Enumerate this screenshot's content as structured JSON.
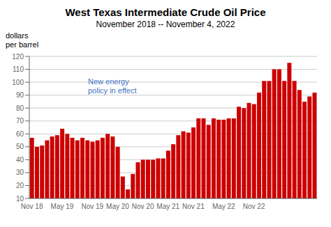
{
  "chart_data": {
    "type": "bar",
    "title": "West Texas Intermediate Crude Oil Price",
    "subtitle": "November 2018 -- November 4, 2022",
    "ylabel": "dollars\nper barrel",
    "annotations": [
      {
        "text": "New energy\npolicy in effect",
        "color": "#4472c4"
      }
    ],
    "categories": [
      "Nov 18",
      null,
      null,
      null,
      null,
      null,
      "May 19",
      null,
      null,
      null,
      null,
      null,
      "Nov 19",
      null,
      null,
      null,
      null,
      "May 20",
      null,
      null,
      null,
      null,
      "Nov 20",
      null,
      null,
      null,
      null,
      "May 21",
      null,
      null,
      null,
      null,
      "Nov 21",
      null,
      null,
      null,
      null,
      null,
      "May 22",
      null,
      null,
      null,
      null,
      null,
      "Nov 22",
      null,
      null,
      null,
      null,
      null,
      null,
      null,
      null,
      null,
      null,
      null,
      null
    ],
    "values": [
      57,
      50,
      51,
      55,
      58,
      59,
      64,
      60,
      57,
      55,
      57,
      55,
      54,
      55,
      57,
      60,
      58,
      50,
      27,
      17,
      29,
      38,
      40,
      40,
      40,
      41,
      41,
      47,
      52,
      59,
      62,
      61,
      65,
      72,
      72,
      67,
      72,
      71,
      71,
      72,
      72,
      81,
      80,
      84,
      83,
      92,
      101,
      101,
      110,
      110,
      101,
      115,
      101,
      94,
      85,
      89,
      92
    ],
    "color": "#cc0000",
    "ylim": [
      10,
      120
    ],
    "yticks": [
      10,
      20,
      30,
      40,
      50,
      60,
      70,
      80,
      90,
      100,
      110,
      120
    ],
    "grid": true
  }
}
